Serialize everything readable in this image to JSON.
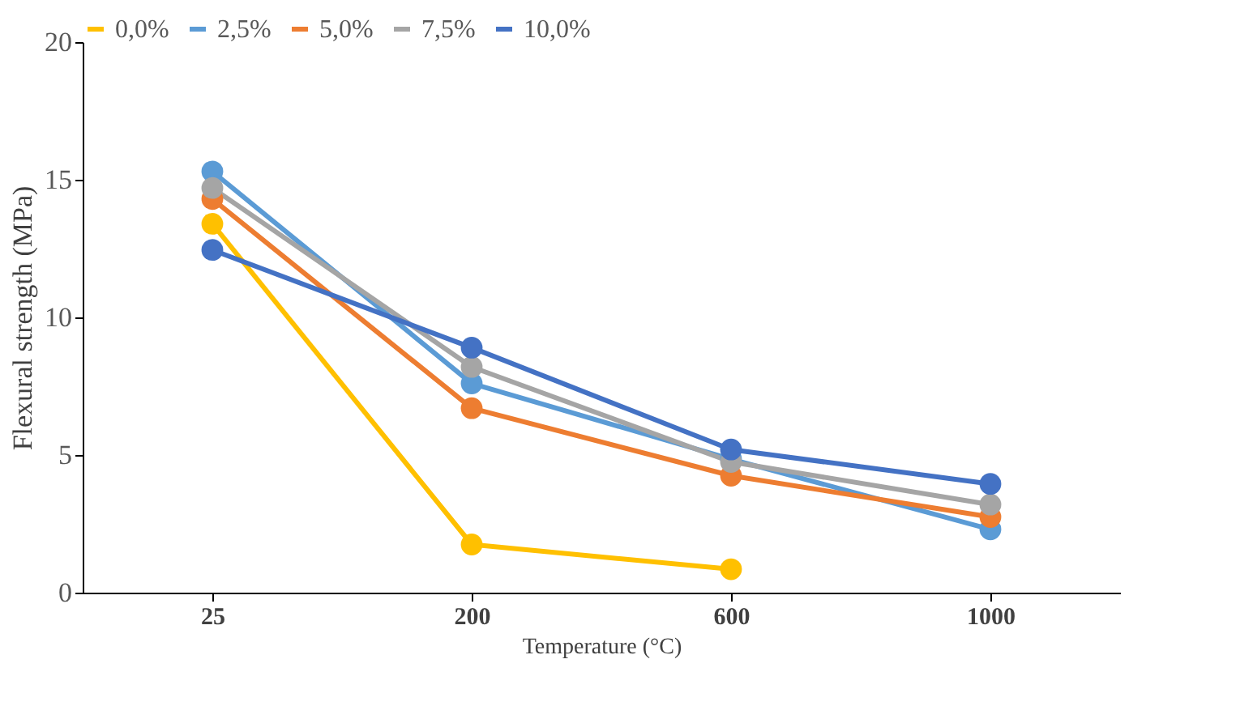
{
  "chart_data": {
    "type": "line",
    "xlabel": "Temperature (°C)",
    "ylabel": "Flexural strength (MPa)",
    "categories": [
      "25",
      "200",
      "600",
      "1000"
    ],
    "series": [
      {
        "name": "0,0%",
        "color": "#ffc000",
        "values": [
          13.4,
          1.75,
          0.85,
          null
        ]
      },
      {
        "name": "2,5%",
        "color": "#5b9bd5",
        "values": [
          15.3,
          7.6,
          4.85,
          2.3
        ]
      },
      {
        "name": "5,0%",
        "color": "#ed7d31",
        "values": [
          14.3,
          6.7,
          4.25,
          2.75
        ]
      },
      {
        "name": "7,5%",
        "color": "#a5a5a5",
        "values": [
          14.7,
          8.2,
          4.75,
          3.2
        ]
      },
      {
        "name": "10,0%",
        "color": "#4472c4",
        "values": [
          12.45,
          8.9,
          5.2,
          3.95
        ]
      }
    ],
    "ylim": [
      0,
      20
    ],
    "yticks": [
      0,
      5,
      10,
      15,
      20
    ],
    "grid": false,
    "legend": "top",
    "marker": "circle",
    "line_style": "solid"
  }
}
